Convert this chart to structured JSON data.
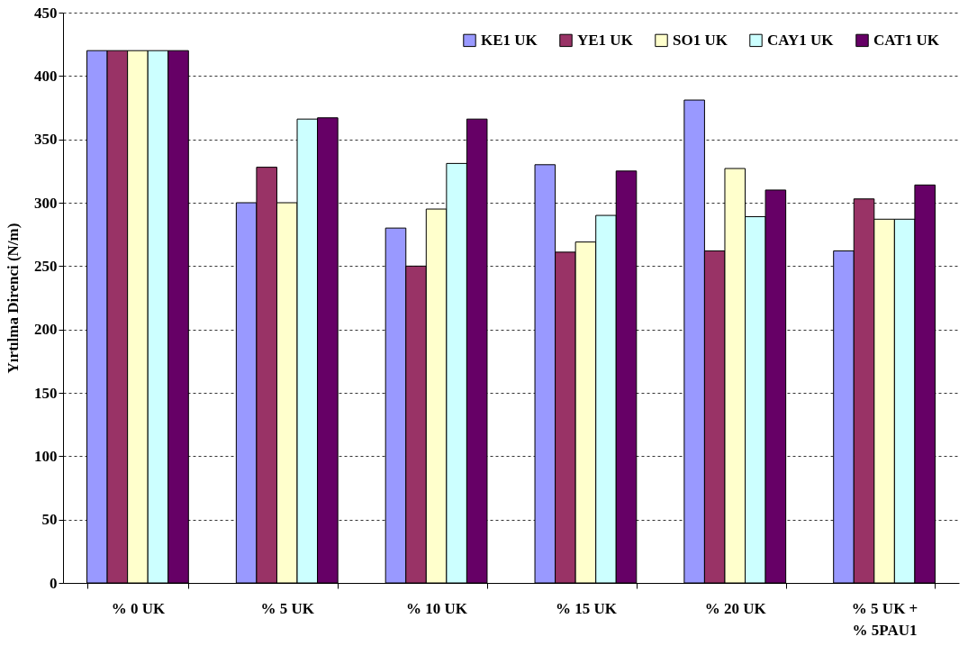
{
  "chart_data": {
    "type": "bar",
    "ylabel": "Yırtılma Direnci (N/m)",
    "categories": [
      "% 0 UK",
      "% 5 UK",
      "% 10 UK",
      "% 15 UK",
      "% 20 UK",
      "% 5 UK +\n% 5PAU1"
    ],
    "series": [
      {
        "name": "KE1 UK",
        "color": "#9999ff",
        "values": [
          420,
          300,
          280,
          330,
          381,
          262
        ]
      },
      {
        "name": "YE1 UK",
        "color": "#993366",
        "values": [
          420,
          328,
          250,
          261,
          262,
          303
        ]
      },
      {
        "name": "SO1 UK",
        "color": "#ffffcc",
        "values": [
          420,
          300,
          295,
          269,
          327,
          287
        ]
      },
      {
        "name": "CAY1 UK",
        "color": "#ccffff",
        "values": [
          420,
          366,
          331,
          290,
          289,
          287
        ]
      },
      {
        "name": "CAT1 UK",
        "color": "#660066",
        "values": [
          420,
          367,
          366,
          325,
          310,
          314
        ]
      }
    ],
    "ylim": [
      0,
      450
    ],
    "yticks": [
      0,
      50,
      100,
      150,
      200,
      250,
      300,
      350,
      400,
      450
    ],
    "grid": "y",
    "legend": "top right"
  }
}
